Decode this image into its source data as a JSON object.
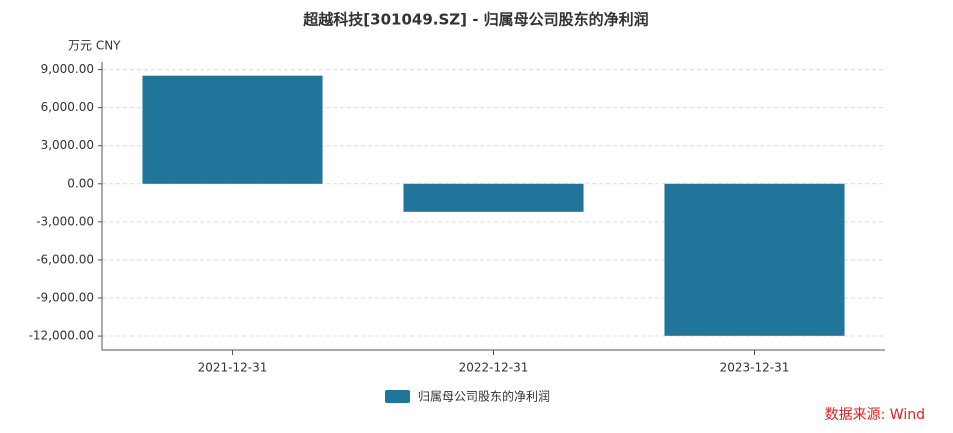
{
  "chart_data": {
    "type": "bar",
    "title": "超越科技[301049.SZ] - 归属母公司股东的净利润",
    "y_unit": "万元  CNY",
    "categories": [
      "2021-12-31",
      "2022-12-31",
      "2023-12-31"
    ],
    "series": [
      {
        "name": "归属母公司股东的净利润",
        "color": "#21759b",
        "values": [
          8520,
          -2210,
          -11980
        ]
      }
    ],
    "ylim": [
      -13100,
      9600
    ],
    "yticks": [
      {
        "value": -12000,
        "label": "-12,000.00"
      },
      {
        "value": -9000,
        "label": "-9,000.00"
      },
      {
        "value": -6000,
        "label": "-6,000.00"
      },
      {
        "value": -3000,
        "label": "-3,000.00"
      },
      {
        "value": 0,
        "label": "0.00"
      },
      {
        "value": 3000,
        "label": "3,000.00"
      },
      {
        "value": 6000,
        "label": "6,000.00"
      },
      {
        "value": 9000,
        "label": "9,000.00"
      }
    ],
    "grid": true,
    "source": "数据来源: Wind",
    "source_color": "#e02020"
  }
}
